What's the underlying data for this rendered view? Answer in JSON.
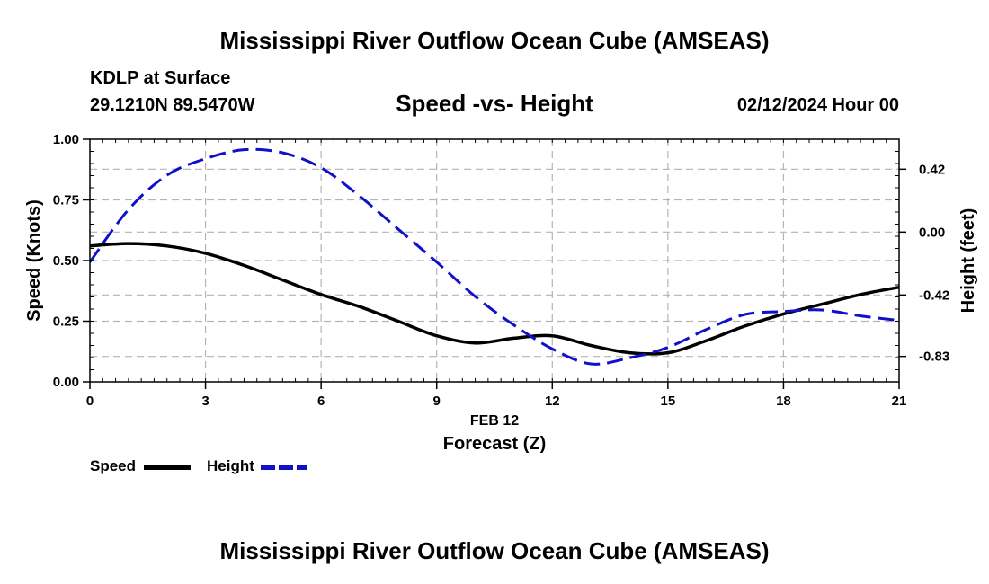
{
  "header": {
    "title": "Mississippi River Outflow Ocean Cube (AMSEAS)",
    "station": "KDLP at Surface",
    "coords": "29.1210N  89.5470W",
    "subtitle": "Speed -vs- Height",
    "datetime": "02/12/2024 Hour 00"
  },
  "footer": {
    "title": "Mississippi River Outflow Ocean Cube (AMSEAS)"
  },
  "legend": {
    "speed_label": "Speed",
    "height_label": "Height"
  },
  "colors": {
    "speed": "#000000",
    "height": "#1010c8",
    "grid": "#b4b4b4"
  },
  "chart_data": {
    "type": "line",
    "title": "Speed -vs- Height",
    "xlabel": "Forecast (Z)",
    "xlabel_date": "FEB 12",
    "ylabel": "Speed (Knots)",
    "y2label": "Height (feet)",
    "xlim": [
      0,
      21
    ],
    "ylim": [
      0,
      1
    ],
    "y2lim": [
      -1.0,
      0.62
    ],
    "x_ticks": [
      0,
      3,
      6,
      9,
      12,
      15,
      18,
      21
    ],
    "y_ticks": [
      "0.00",
      "0.25",
      "0.50",
      "0.75",
      "1.00"
    ],
    "y2_ticks": [
      "-0.83",
      "-0.42",
      "0.00",
      "0.42"
    ],
    "grid": true,
    "series": [
      {
        "name": "Speed",
        "axis": "left",
        "style": "solid",
        "x": [
          0,
          1,
          2,
          3,
          4,
          5,
          6,
          7,
          8,
          9,
          10,
          11,
          12,
          13,
          14,
          15,
          16,
          17,
          18,
          19,
          20,
          21
        ],
        "values": [
          0.56,
          0.57,
          0.56,
          0.53,
          0.48,
          0.42,
          0.36,
          0.31,
          0.25,
          0.19,
          0.16,
          0.18,
          0.19,
          0.15,
          0.12,
          0.12,
          0.17,
          0.23,
          0.28,
          0.32,
          0.36,
          0.39
        ]
      },
      {
        "name": "Height",
        "axis": "right",
        "style": "dashed",
        "x": [
          0,
          1,
          2,
          3,
          4,
          5,
          6,
          7,
          8,
          9,
          10,
          11,
          12,
          13,
          14,
          15,
          16,
          17,
          18,
          19,
          20,
          21
        ],
        "values": [
          -0.2,
          0.15,
          0.38,
          0.49,
          0.55,
          0.53,
          0.43,
          0.24,
          0.02,
          -0.2,
          -0.43,
          -0.62,
          -0.78,
          -0.88,
          -0.84,
          -0.77,
          -0.65,
          -0.55,
          -0.53,
          -0.52,
          -0.56,
          -0.59
        ]
      }
    ]
  }
}
